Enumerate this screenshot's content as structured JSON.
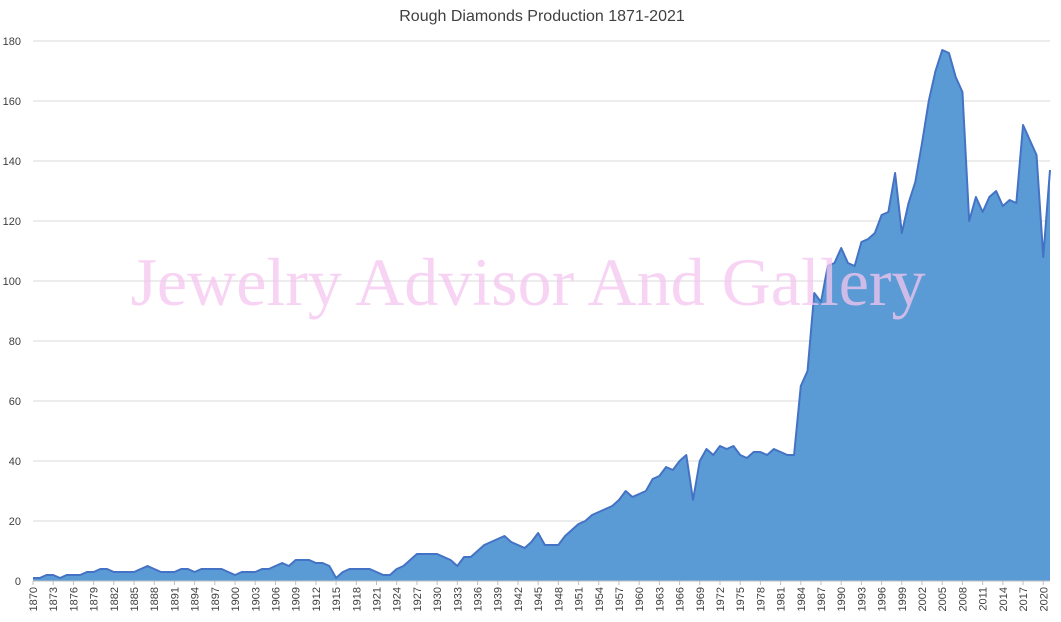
{
  "watermark": "Jewelry Advisor And Gallery",
  "colors": {
    "area_fill": "#5b9bd5",
    "area_stroke": "#4472c4",
    "grid": "#d9d9d9",
    "text": "#404040",
    "watermark": "#f5c6ef"
  },
  "chart_data": {
    "type": "area",
    "title": "Rough Diamonds Production 1871-2021",
    "xlabel": "",
    "ylabel": "",
    "ylim": [
      0,
      180
    ],
    "yticks": [
      0,
      20,
      40,
      60,
      80,
      100,
      120,
      140,
      160,
      180
    ],
    "xlim": [
      1870,
      2021
    ],
    "xtick_labels": [
      "1870",
      "1873",
      "1876",
      "1879",
      "1882",
      "1885",
      "1888",
      "1891",
      "1894",
      "1897",
      "1900",
      "1903",
      "1906",
      "1909",
      "1912",
      "1915",
      "1918",
      "1921",
      "1924",
      "1927",
      "1930",
      "1933",
      "1936",
      "1939",
      "1942",
      "1945",
      "1948",
      "1951",
      "1954",
      "1957",
      "1960",
      "1963",
      "1966",
      "1969",
      "1972",
      "1975",
      "1978",
      "1981",
      "1984",
      "1987",
      "1990",
      "1993",
      "1996",
      "1999",
      "2002",
      "2005",
      "2008",
      "2011",
      "2014",
      "2017",
      "2020"
    ],
    "grid": true,
    "legend": "none",
    "series": [
      {
        "x": [
          1870,
          1871,
          1872,
          1873,
          1874,
          1875,
          1876,
          1877,
          1878,
          1879,
          1880,
          1881,
          1882,
          1883,
          1884,
          1885,
          1886,
          1887,
          1888,
          1889,
          1890,
          1891,
          1892,
          1893,
          1894,
          1895,
          1896,
          1897,
          1898,
          1899,
          1900,
          1901,
          1902,
          1903,
          1904,
          1905,
          1906,
          1907,
          1908,
          1909,
          1910,
          1911,
          1912,
          1913,
          1914,
          1915,
          1916,
          1917,
          1918,
          1919,
          1920,
          1921,
          1922,
          1923,
          1924,
          1925,
          1926,
          1927,
          1928,
          1929,
          1930,
          1931,
          1932,
          1933,
          1934,
          1935,
          1936,
          1937,
          1938,
          1939,
          1940,
          1941,
          1942,
          1943,
          1944,
          1945,
          1946,
          1947,
          1948,
          1949,
          1950,
          1951,
          1952,
          1953,
          1954,
          1955,
          1956,
          1957,
          1958,
          1959,
          1960,
          1961,
          1962,
          1963,
          1964,
          1965,
          1966,
          1967,
          1968,
          1969,
          1970,
          1971,
          1972,
          1973,
          1974,
          1975,
          1976,
          1977,
          1978,
          1979,
          1980,
          1981,
          1982,
          1983,
          1984,
          1985,
          1986,
          1987,
          1988,
          1989,
          1990,
          1991,
          1992,
          1993,
          1994,
          1995,
          1996,
          1997,
          1998,
          1999,
          2000,
          2001,
          2002,
          2003,
          2004,
          2005,
          2006,
          2007,
          2008,
          2009,
          2010,
          2011,
          2012,
          2013,
          2014,
          2015,
          2016,
          2017,
          2018,
          2019,
          2020,
          2021
        ],
        "values": [
          1,
          1,
          2,
          2,
          1,
          2,
          2,
          2,
          3,
          3,
          4,
          4,
          3,
          3,
          3,
          3,
          4,
          5,
          4,
          3,
          3,
          3,
          4,
          4,
          3,
          4,
          4,
          4,
          4,
          3,
          2,
          3,
          3,
          3,
          4,
          4,
          5,
          6,
          5,
          7,
          7,
          7,
          6,
          6,
          5,
          1,
          3,
          4,
          4,
          4,
          4,
          3,
          2,
          2,
          4,
          5,
          7,
          9,
          9,
          9,
          9,
          8,
          7,
          5,
          8,
          8,
          10,
          12,
          13,
          14,
          15,
          13,
          12,
          11,
          13,
          16,
          12,
          12,
          12,
          15,
          17,
          19,
          20,
          22,
          23,
          24,
          25,
          27,
          30,
          28,
          29,
          30,
          34,
          35,
          38,
          37,
          40,
          42,
          27,
          40,
          44,
          42,
          45,
          44,
          45,
          42,
          41,
          43,
          43,
          42,
          44,
          43,
          42,
          42,
          65,
          70,
          96,
          93,
          105,
          106,
          111,
          106,
          105,
          113,
          114,
          116,
          122,
          123,
          136,
          116,
          126,
          133,
          146,
          160,
          170,
          177,
          176,
          168,
          163,
          120,
          128,
          123,
          128,
          130,
          125,
          127,
          126,
          152,
          147,
          142,
          108,
          137
        ]
      }
    ]
  }
}
